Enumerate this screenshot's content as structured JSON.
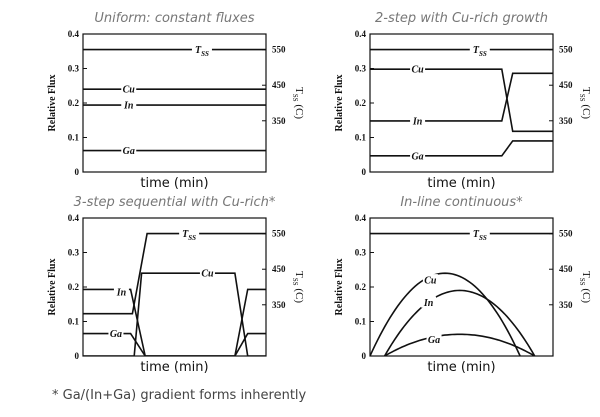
{
  "footnote": "* Ga/(In+Ga) gradient forms inherently",
  "chart_data": [
    {
      "type": "line",
      "title": "Uniform: constant fluxes",
      "xlabel": "time (min)",
      "ylabel": "Relative Flux",
      "y2label": "T_SS (C)",
      "ylim": [
        0,
        0.4
      ],
      "yticks": [
        "0",
        "0.1",
        "0.2",
        "0.3",
        "0.4"
      ],
      "y2lim": [
        206,
        594
      ],
      "y2ticks": [
        350,
        450,
        550
      ],
      "xlim": [
        0,
        10
      ],
      "series": [
        {
          "name": "Cu",
          "axis": "left",
          "x": [
            0,
            10
          ],
          "y": [
            0.24,
            0.24
          ],
          "label_at": [
            2.5,
            0.24
          ]
        },
        {
          "name": "In",
          "axis": "left",
          "x": [
            0,
            10
          ],
          "y": [
            0.194,
            0.194
          ],
          "label_at": [
            2.5,
            0.194
          ]
        },
        {
          "name": "Ga",
          "axis": "left",
          "x": [
            0,
            10
          ],
          "y": [
            0.062,
            0.062
          ],
          "label_at": [
            2.5,
            0.062
          ]
        },
        {
          "name": "T",
          "sub": "SS",
          "axis": "right",
          "x": [
            0,
            10
          ],
          "y": [
            550,
            550
          ],
          "label_at": [
            6.5,
            550
          ]
        }
      ]
    },
    {
      "type": "line",
      "title": "2-step with Cu-rich growth",
      "xlabel": "time (min)",
      "ylabel": "Relative Flux",
      "y2label": "T_SS (C)",
      "ylim": [
        0,
        0.4
      ],
      "yticks": [
        "0",
        "0.1",
        "0.2",
        "0.3",
        "0.4"
      ],
      "y2lim": [
        206,
        594
      ],
      "y2ticks": [
        350,
        450,
        550
      ],
      "xlim": [
        0,
        10
      ],
      "series": [
        {
          "name": "Cu",
          "axis": "left",
          "x": [
            0,
            7.2,
            7.8,
            10
          ],
          "y": [
            0.298,
            0.298,
            0.118,
            0.118
          ],
          "label_at": [
            2.6,
            0.298
          ]
        },
        {
          "name": "In",
          "axis": "left",
          "x": [
            0,
            7.2,
            7.8,
            10
          ],
          "y": [
            0.148,
            0.148,
            0.286,
            0.286
          ],
          "label_at": [
            2.6,
            0.148
          ]
        },
        {
          "name": "Ga",
          "axis": "left",
          "x": [
            0,
            7.2,
            7.8,
            10
          ],
          "y": [
            0.047,
            0.047,
            0.09,
            0.09
          ],
          "label_at": [
            2.6,
            0.047
          ]
        },
        {
          "name": "T",
          "sub": "SS",
          "axis": "right",
          "x": [
            0,
            10
          ],
          "y": [
            550,
            550
          ],
          "label_at": [
            6.0,
            550
          ]
        }
      ]
    },
    {
      "type": "line",
      "title": "3-step sequential with Cu-rich*",
      "xlabel": "time (min)",
      "ylabel": "Relative Flux",
      "y2label": "T_SS (C)",
      "ylim": [
        0,
        0.4
      ],
      "yticks": [
        "0",
        "0.1",
        "0.2",
        "0.3",
        "0.4"
      ],
      "y2lim": [
        206,
        594
      ],
      "y2ticks": [
        350,
        450,
        550
      ],
      "xlim": [
        0,
        10
      ],
      "series": [
        {
          "name": "In",
          "axis": "left",
          "x": [
            0,
            2.6,
            3.4,
            8.3,
            9.0,
            10
          ],
          "y": [
            0.193,
            0.193,
            0,
            0,
            0.193,
            0.193
          ],
          "label_at": [
            2.1,
            0.185
          ]
        },
        {
          "name": "Ga",
          "axis": "left",
          "x": [
            0,
            2.6,
            3.4,
            8.3,
            9.0,
            10
          ],
          "y": [
            0.065,
            0.065,
            0,
            0,
            0.065,
            0.065
          ],
          "label_at": [
            1.8,
            0.065
          ]
        },
        {
          "name": "Cu",
          "axis": "left",
          "x": [
            0,
            2.8,
            3.2,
            8.3,
            9.0,
            10
          ],
          "y": [
            0,
            0,
            0.24,
            0.24,
            0,
            0
          ],
          "label_at": [
            6.8,
            0.24
          ]
        },
        {
          "name": "T",
          "sub": "SS",
          "axis": "right",
          "x": [
            0,
            2.7,
            3.5,
            10
          ],
          "y": [
            325,
            325,
            550,
            550
          ],
          "label_at": [
            5.8,
            550
          ]
        }
      ]
    },
    {
      "type": "line",
      "title": "In-line continuous*",
      "xlabel": "time (min)",
      "ylabel": "Relative Flux",
      "y2label": "T_SS (C)",
      "ylim": [
        0,
        0.4
      ],
      "yticks": [
        "0",
        "0.1",
        "0.2",
        "0.3",
        "0.4"
      ],
      "y2lim": [
        206,
        594
      ],
      "y2ticks": [
        350,
        450,
        550
      ],
      "xlim": [
        0,
        10
      ],
      "series": [
        {
          "name": "Cu",
          "axis": "left",
          "curve": "parabola",
          "x0": 0,
          "x1": 8.2,
          "peak": 0.24,
          "label_at": [
            3.3,
            0.22
          ]
        },
        {
          "name": "In",
          "axis": "left",
          "curve": "parabola",
          "x0": 0.8,
          "x1": 9.0,
          "peak": 0.19,
          "label_at": [
            3.2,
            0.155
          ]
        },
        {
          "name": "Ga",
          "axis": "left",
          "curve": "parabola",
          "x0": 0.8,
          "x1": 9.0,
          "peak": 0.063,
          "label_at": [
            3.5,
            0.048
          ]
        },
        {
          "name": "T",
          "sub": "SS",
          "axis": "right",
          "x": [
            0,
            10
          ],
          "y": [
            550,
            550
          ],
          "label_at": [
            6.0,
            550
          ]
        }
      ]
    }
  ]
}
